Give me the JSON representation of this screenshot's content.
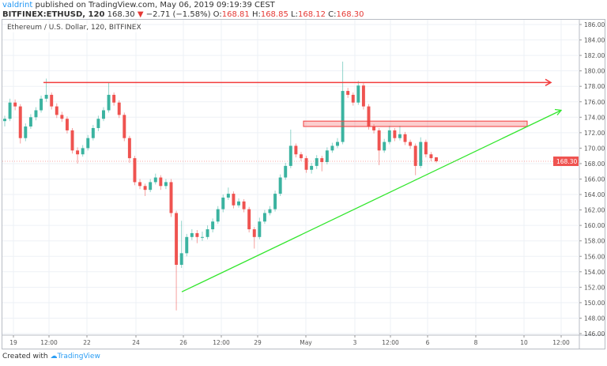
{
  "header": {
    "user": "valdrint",
    "published": "published on TradingView.com, May 06, 2019 09:19:39 CEST",
    "symbol": "BITFINEX:ETHUSD, 120",
    "last": "168.30",
    "change": "−2.71 (−1.58%)",
    "open_label": "O:",
    "open": "168.81",
    "high_label": "H:",
    "high": "168.85",
    "low_label": "L:",
    "low": "168.12",
    "close_label": "C:",
    "close": "168.30"
  },
  "footer": {
    "created_with": "Created with",
    "brand": "TradingView"
  },
  "colors": {
    "up": "#3bb3a0",
    "down": "#ef5350",
    "resistance": "#f23d3d",
    "trend": "#33e62e",
    "grid": "#edf1f6"
  },
  "chart_data": {
    "type": "candlestick",
    "title": "Ethereum / U.S. Dollar, 120, BITFINEX",
    "ylim": [
      146,
      186
    ],
    "y_ticks": [
      "186.00",
      "184.00",
      "182.00",
      "180.00",
      "178.00",
      "176.00",
      "174.00",
      "172.00",
      "170.00",
      "168.00",
      "166.00",
      "164.00",
      "162.00",
      "160.00",
      "158.00",
      "156.00",
      "154.00",
      "152.00",
      "150.00",
      "148.00",
      "146.00"
    ],
    "x_ticks": [
      "19",
      "12:00",
      "22",
      "24",
      "26",
      "12:00",
      "29",
      "May",
      "3",
      "12:00",
      "6",
      "8",
      "10",
      "12:00"
    ],
    "grid": true,
    "last_price_label": "168.30",
    "candles": [
      [
        173.5,
        174.2,
        172.8,
        173.8
      ],
      [
        173.8,
        176.4,
        173.5,
        175.9
      ],
      [
        175.9,
        176.3,
        174.9,
        175.4
      ],
      [
        175.4,
        175.7,
        170.6,
        171.3
      ],
      [
        171.3,
        173.2,
        170.9,
        172.8
      ],
      [
        172.8,
        174.4,
        172.5,
        174.0
      ],
      [
        174.0,
        175.3,
        173.6,
        174.9
      ],
      [
        174.9,
        176.8,
        174.6,
        176.4
      ],
      [
        176.4,
        179.0,
        176.0,
        176.9
      ],
      [
        176.9,
        177.2,
        175.0,
        175.4
      ],
      [
        175.4,
        175.8,
        173.9,
        174.3
      ],
      [
        174.3,
        174.7,
        173.4,
        173.8
      ],
      [
        173.8,
        174.1,
        171.9,
        172.3
      ],
      [
        172.3,
        172.6,
        169.3,
        169.7
      ],
      [
        169.7,
        170.1,
        168.0,
        169.2
      ],
      [
        169.2,
        170.4,
        168.9,
        170.0
      ],
      [
        170.0,
        171.7,
        169.7,
        171.3
      ],
      [
        171.3,
        173.0,
        171.0,
        172.6
      ],
      [
        172.6,
        174.2,
        172.2,
        173.8
      ],
      [
        173.8,
        175.3,
        173.5,
        174.9
      ],
      [
        174.9,
        178.5,
        174.6,
        176.9
      ],
      [
        176.9,
        177.2,
        175.5,
        175.9
      ],
      [
        175.9,
        176.2,
        173.9,
        174.3
      ],
      [
        174.3,
        174.6,
        170.9,
        171.3
      ],
      [
        171.3,
        171.6,
        168.1,
        168.7
      ],
      [
        168.7,
        169.0,
        165.2,
        165.6
      ],
      [
        165.6,
        166.0,
        164.7,
        165.1
      ],
      [
        165.1,
        165.4,
        163.8,
        164.6
      ],
      [
        164.6,
        166.0,
        164.3,
        165.6
      ],
      [
        165.6,
        166.7,
        165.3,
        166.2
      ],
      [
        166.2,
        166.5,
        164.6,
        165.1
      ],
      [
        165.1,
        166.0,
        164.7,
        165.6
      ],
      [
        165.6,
        166.0,
        161.1,
        161.6
      ],
      [
        161.6,
        161.9,
        149.0,
        154.9
      ],
      [
        154.9,
        160.6,
        154.5,
        156.4
      ],
      [
        156.4,
        158.9,
        156.0,
        158.5
      ],
      [
        158.5,
        159.5,
        158.1,
        159.0
      ],
      [
        159.0,
        159.4,
        157.7,
        158.5
      ],
      [
        158.5,
        159.2,
        158.0,
        158.5
      ],
      [
        158.5,
        160.0,
        158.2,
        159.5
      ],
      [
        159.5,
        160.9,
        159.1,
        160.5
      ],
      [
        160.5,
        162.5,
        160.2,
        162.1
      ],
      [
        162.1,
        164.0,
        161.7,
        163.6
      ],
      [
        163.6,
        164.9,
        163.3,
        164.1
      ],
      [
        164.1,
        164.4,
        162.2,
        162.6
      ],
      [
        162.6,
        163.5,
        162.3,
        163.1
      ],
      [
        163.1,
        163.4,
        161.7,
        162.1
      ],
      [
        162.1,
        162.4,
        159.1,
        159.5
      ],
      [
        159.5,
        159.8,
        157.0,
        158.5
      ],
      [
        158.5,
        161.0,
        158.2,
        160.5
      ],
      [
        160.5,
        162.0,
        160.2,
        161.6
      ],
      [
        161.6,
        162.5,
        161.3,
        162.1
      ],
      [
        162.1,
        164.5,
        161.8,
        164.1
      ],
      [
        164.1,
        166.6,
        163.8,
        166.2
      ],
      [
        166.2,
        168.1,
        165.9,
        167.7
      ],
      [
        167.7,
        172.4,
        167.4,
        170.3
      ],
      [
        170.3,
        170.6,
        168.8,
        169.2
      ],
      [
        169.2,
        169.5,
        168.3,
        168.7
      ],
      [
        168.7,
        169.0,
        166.8,
        167.2
      ],
      [
        167.2,
        168.1,
        166.7,
        167.7
      ],
      [
        167.7,
        169.1,
        167.3,
        168.7
      ],
      [
        168.7,
        169.0,
        167.0,
        168.2
      ],
      [
        168.2,
        170.1,
        167.9,
        169.7
      ],
      [
        169.7,
        170.7,
        169.4,
        170.3
      ],
      [
        170.3,
        171.3,
        170.0,
        170.8
      ],
      [
        170.8,
        181.2,
        170.5,
        177.4
      ],
      [
        177.4,
        177.8,
        176.5,
        176.9
      ],
      [
        176.9,
        177.2,
        175.5,
        175.9
      ],
      [
        175.9,
        178.7,
        175.6,
        178.1
      ],
      [
        178.1,
        178.4,
        175.0,
        175.4
      ],
      [
        175.4,
        175.7,
        172.4,
        172.8
      ],
      [
        172.8,
        173.1,
        171.9,
        172.3
      ],
      [
        172.3,
        172.6,
        167.8,
        169.7
      ],
      [
        169.7,
        171.2,
        169.4,
        170.8
      ],
      [
        170.8,
        172.9,
        170.5,
        172.3
      ],
      [
        172.3,
        172.6,
        170.9,
        171.3
      ],
      [
        171.3,
        172.9,
        171.0,
        171.8
      ],
      [
        171.8,
        172.1,
        170.4,
        170.8
      ],
      [
        170.8,
        171.1,
        169.9,
        170.3
      ],
      [
        170.3,
        170.6,
        166.5,
        167.7
      ],
      [
        167.7,
        171.4,
        167.4,
        170.8
      ],
      [
        170.8,
        171.1,
        168.8,
        169.2
      ],
      [
        169.2,
        169.5,
        168.3,
        168.7
      ],
      [
        168.81,
        168.85,
        168.12,
        168.3
      ]
    ],
    "drawings": {
      "resistance_line_price": 178.5,
      "supply_zone": [
        172.8,
        173.5
      ],
      "trend_line_prices": [
        151.4,
        174.9
      ]
    }
  }
}
